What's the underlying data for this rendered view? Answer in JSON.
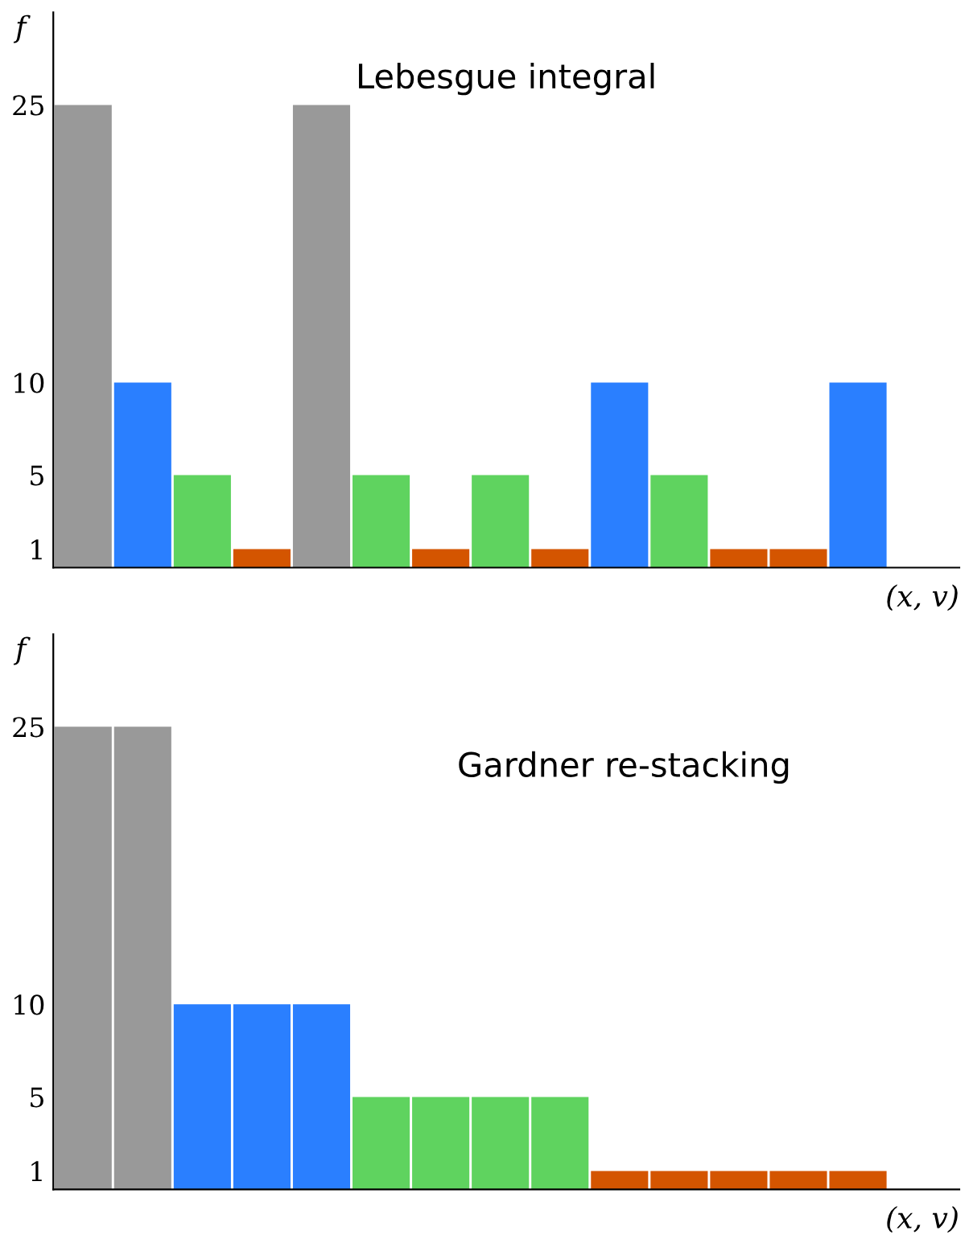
{
  "chart_data": [
    {
      "type": "bar",
      "title": "Lebesgue integral",
      "xlabel": "(x, v)",
      "ylabel": "f",
      "categories": [
        null,
        null,
        null,
        null,
        null,
        null,
        null,
        null,
        null,
        null,
        null,
        null,
        null,
        null
      ],
      "values": [
        25,
        10,
        5,
        1,
        25,
        5,
        1,
        5,
        1,
        10,
        5,
        1,
        1,
        10
      ],
      "colors": [
        "#999999",
        "#2a7fff",
        "#5fd35f",
        "#d45500",
        "#999999",
        "#5fd35f",
        "#d45500",
        "#5fd35f",
        "#d45500",
        "#2a7fff",
        "#5fd35f",
        "#d45500",
        "#d45500",
        "#2a7fff"
      ],
      "ylim": [
        0,
        30
      ],
      "yticks": [
        1,
        5,
        10,
        25
      ],
      "grid": false,
      "legend": false
    },
    {
      "type": "bar",
      "title": "Gardner re-stacking",
      "xlabel": "(x, v)",
      "ylabel": "f",
      "categories": [
        null,
        null,
        null,
        null,
        null,
        null,
        null,
        null,
        null,
        null,
        null,
        null,
        null,
        null
      ],
      "values": [
        25,
        25,
        10,
        10,
        10,
        5,
        5,
        5,
        5,
        1,
        1,
        1,
        1,
        1
      ],
      "colors": [
        "#999999",
        "#999999",
        "#2a7fff",
        "#2a7fff",
        "#2a7fff",
        "#5fd35f",
        "#5fd35f",
        "#5fd35f",
        "#5fd35f",
        "#d45500",
        "#d45500",
        "#d45500",
        "#d45500",
        "#d45500"
      ],
      "ylim": [
        0,
        30
      ],
      "yticks": [
        1,
        5,
        10,
        25
      ],
      "grid": false,
      "legend": false
    }
  ]
}
